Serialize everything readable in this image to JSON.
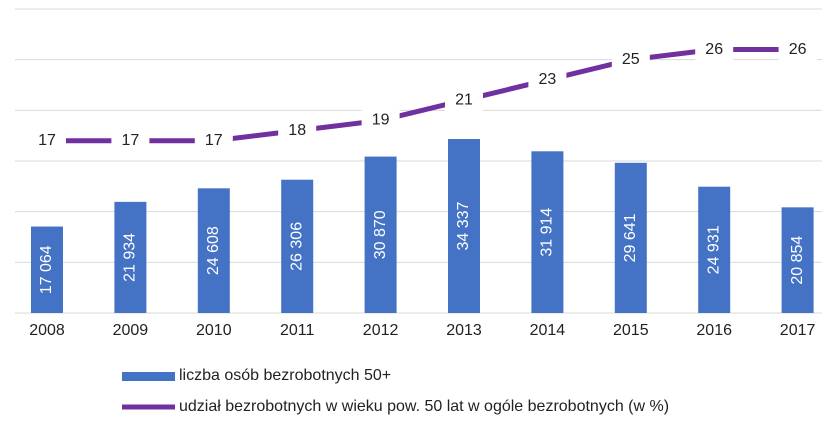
{
  "chart_data": {
    "type": "bar",
    "categories": [
      "2008",
      "2009",
      "2010",
      "2011",
      "2012",
      "2013",
      "2014",
      "2015",
      "2016",
      "2017"
    ],
    "series": [
      {
        "name": "liczba osób bezrobotnych 50+",
        "color": "#4472c4",
        "values": [
          17064,
          21934,
          24608,
          26306,
          30870,
          34337,
          31914,
          29641,
          24931,
          20854
        ],
        "value_labels": [
          "17 064",
          "21 934",
          "24 608",
          "26 306",
          "30 870",
          "34 337",
          "31 914",
          "29 641",
          "24 931",
          "20 854"
        ]
      },
      {
        "name": "udział bezrobotnych w wieku pow. 50 lat w ogóle bezrobotnych (w %)",
        "color": "#7030a0",
        "axis": "y2",
        "values": [
          17,
          17,
          17,
          18,
          19,
          21,
          23,
          25,
          26,
          26
        ]
      }
    ],
    "ylim": [
      0,
      60000
    ],
    "yticks": [
      0,
      10000,
      20000,
      30000,
      40000,
      50000,
      60000
    ],
    "y2lim": [
      0,
      30
    ],
    "grid": true
  }
}
